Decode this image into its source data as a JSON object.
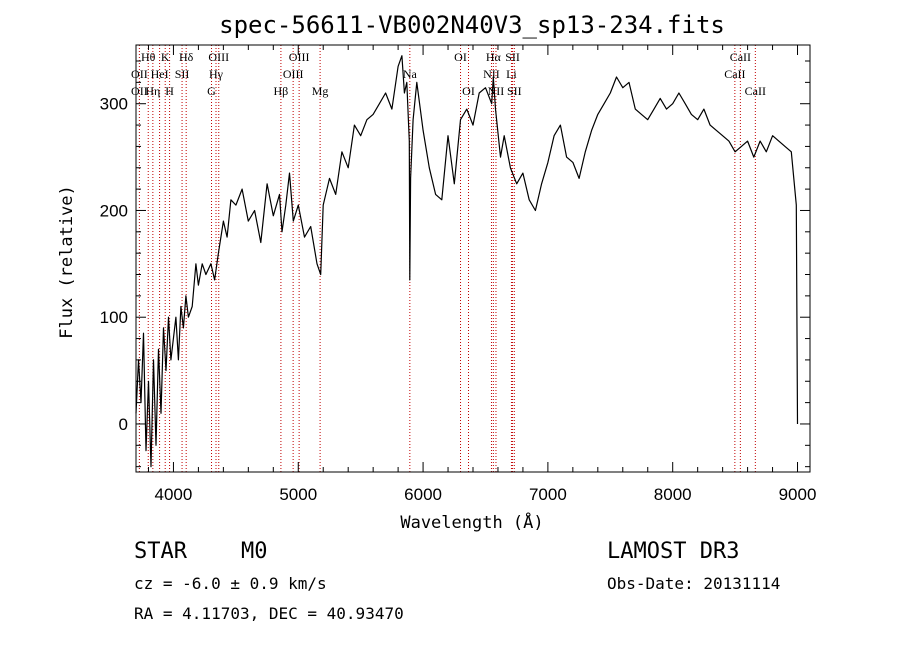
{
  "chart_data": {
    "type": "line",
    "title": "spec-56611-VB002N40V3_sp13-234.fits",
    "xlabel": "Wavelength (Å)",
    "ylabel": "Flux (relative)",
    "xlim": [
      3700,
      9100
    ],
    "ylim": [
      -45,
      355
    ],
    "xticks": [
      4000,
      5000,
      6000,
      7000,
      8000,
      9000
    ],
    "yticks": [
      0,
      100,
      200,
      300
    ],
    "grid": false,
    "series": [
      {
        "color": "#000000",
        "x": [
          3700,
          3720,
          3740,
          3760,
          3780,
          3800,
          3820,
          3840,
          3860,
          3880,
          3900,
          3920,
          3940,
          3960,
          3980,
          4000,
          4020,
          4040,
          4060,
          4080,
          4100,
          4120,
          4150,
          4180,
          4200,
          4230,
          4260,
          4300,
          4330,
          4360,
          4400,
          4430,
          4460,
          4500,
          4550,
          4600,
          4650,
          4700,
          4750,
          4800,
          4850,
          4870,
          4900,
          4930,
          4960,
          5000,
          5050,
          5100,
          5150,
          5180,
          5200,
          5250,
          5300,
          5350,
          5400,
          5450,
          5500,
          5550,
          5600,
          5650,
          5700,
          5750,
          5800,
          5830,
          5850,
          5870,
          5890,
          5894,
          5900,
          5920,
          5950,
          6000,
          6050,
          6100,
          6150,
          6200,
          6250,
          6300,
          6350,
          6400,
          6450,
          6500,
          6550,
          6563,
          6580,
          6620,
          6650,
          6700,
          6750,
          6800,
          6850,
          6900,
          6950,
          7000,
          7050,
          7100,
          7150,
          7200,
          7250,
          7300,
          7350,
          7400,
          7450,
          7500,
          7550,
          7600,
          7650,
          7700,
          7750,
          7800,
          7850,
          7900,
          7950,
          8000,
          8050,
          8100,
          8150,
          8200,
          8250,
          8300,
          8350,
          8400,
          8450,
          8500,
          8550,
          8600,
          8650,
          8700,
          8750,
          8800,
          8850,
          8900,
          8950,
          8990,
          9000
        ],
        "y": [
          10,
          60,
          20,
          85,
          -25,
          40,
          -40,
          60,
          -20,
          70,
          10,
          90,
          50,
          100,
          60,
          80,
          100,
          60,
          110,
          90,
          120,
          100,
          110,
          150,
          130,
          150,
          140,
          150,
          135,
          160,
          190,
          175,
          210,
          205,
          220,
          190,
          200,
          170,
          225,
          195,
          215,
          180,
          205,
          235,
          190,
          205,
          175,
          185,
          150,
          140,
          205,
          230,
          215,
          255,
          240,
          280,
          270,
          285,
          290,
          300,
          310,
          295,
          335,
          345,
          310,
          320,
          265,
          135,
          230,
          285,
          320,
          275,
          240,
          215,
          210,
          270,
          225,
          285,
          295,
          280,
          310,
          315,
          300,
          325,
          295,
          250,
          270,
          240,
          225,
          235,
          210,
          200,
          225,
          245,
          270,
          280,
          250,
          245,
          230,
          255,
          275,
          290,
          300,
          310,
          325,
          315,
          320,
          295,
          290,
          285,
          295,
          305,
          295,
          300,
          310,
          300,
          290,
          285,
          295,
          280,
          275,
          270,
          265,
          255,
          260,
          265,
          250,
          265,
          255,
          270,
          265,
          260,
          255,
          205,
          0
        ]
      }
    ],
    "line_markers": [
      {
        "label": "Hθ",
        "wave": 3798,
        "row": 1
      },
      {
        "label": "OII",
        "wave": 3727,
        "row": 2
      },
      {
        "label": "OII",
        "wave": 3727,
        "row": 3
      },
      {
        "label": "K",
        "wave": 3934,
        "row": 1
      },
      {
        "label": "HeI",
        "wave": 3889,
        "row": 2
      },
      {
        "label": "Hη",
        "wave": 3835,
        "row": 3
      },
      {
        "label": "SII",
        "wave": 4069,
        "row": 2
      },
      {
        "label": "H",
        "wave": 3969,
        "row": 3
      },
      {
        "label": "Hδ",
        "wave": 4102,
        "row": 1
      },
      {
        "label": "OIII",
        "wave": 4363,
        "row": 1
      },
      {
        "label": "Hγ",
        "wave": 4341,
        "row": 2
      },
      {
        "label": "G",
        "wave": 4305,
        "row": 3
      },
      {
        "label": "OIII",
        "wave": 5007,
        "row": 1
      },
      {
        "label": "OIII",
        "wave": 4959,
        "row": 2
      },
      {
        "label": "Hβ",
        "wave": 4861,
        "row": 3
      },
      {
        "label": "Mg",
        "wave": 5175,
        "row": 3
      },
      {
        "label": "Na",
        "wave": 5894,
        "row": 2
      },
      {
        "label": "OI",
        "wave": 6300,
        "row": 1
      },
      {
        "label": "OI",
        "wave": 6364,
        "row": 3
      },
      {
        "label": "Hα",
        "wave": 6563,
        "row": 1
      },
      {
        "label": "NII",
        "wave": 6548,
        "row": 2
      },
      {
        "label": "NII",
        "wave": 6584,
        "row": 3
      },
      {
        "label": "SII",
        "wave": 6717,
        "row": 1
      },
      {
        "label": "Li",
        "wave": 6708,
        "row": 2
      },
      {
        "label": "SII",
        "wave": 6731,
        "row": 3
      },
      {
        "label": "CaII",
        "wave": 8542,
        "row": 1
      },
      {
        "label": "CaII",
        "wave": 8498,
        "row": 2
      },
      {
        "label": "CaII",
        "wave": 8662,
        "row": 3
      }
    ],
    "marker_color": "#c00000"
  },
  "info": {
    "object_class": "STAR",
    "subclass": "M0",
    "survey": "LAMOST DR3",
    "velocity": "cz = -6.0 ± 0.9 km/s",
    "obs_date": "Obs-Date: 20131114",
    "coordinates": "RA =   4.11703, DEC =  40.93470"
  }
}
